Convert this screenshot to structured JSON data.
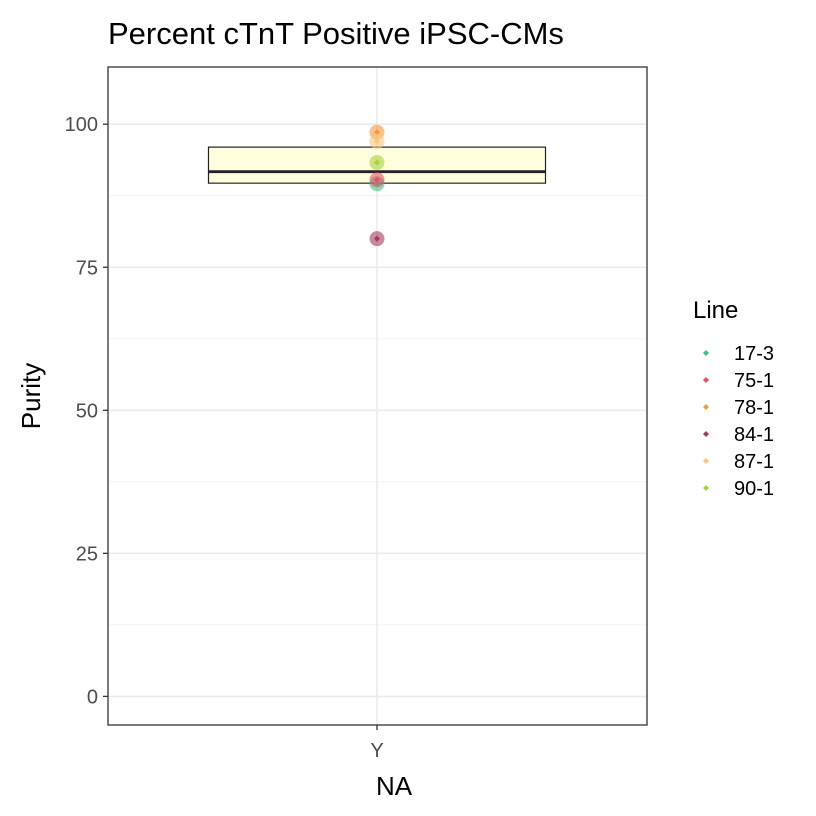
{
  "chart_data": {
    "type": "box",
    "title": "Percent cTnT Positive iPSC-CMs",
    "xlabel": "NA",
    "ylabel": "Purity",
    "categories": [
      "Y"
    ],
    "ylim": [
      -5,
      110
    ],
    "yticks": [
      0,
      25,
      50,
      75,
      100
    ],
    "grid": true,
    "box": {
      "category": "Y",
      "lower": 89.7,
      "median": 91.7,
      "upper": 96.0,
      "fill": "#ffffdd",
      "stroke": "#222222"
    },
    "legend": {
      "title": "Line",
      "placement": "right"
    },
    "series": [
      {
        "name": "17-3",
        "color": "#3fc281",
        "points": [
          {
            "x": "Y",
            "y": 89.6
          }
        ]
      },
      {
        "name": "75-1",
        "color": "#e8506a",
        "points": [
          {
            "x": "Y",
            "y": 90.3
          }
        ]
      },
      {
        "name": "78-1",
        "color": "#f59a3a",
        "points": [
          {
            "x": "Y",
            "y": 98.6
          }
        ]
      },
      {
        "name": "84-1",
        "color": "#a33a5e",
        "points": [
          {
            "x": "Y",
            "y": 80.0
          }
        ]
      },
      {
        "name": "87-1",
        "color": "#f7c97c",
        "points": [
          {
            "x": "Y",
            "y": 97.0
          }
        ]
      },
      {
        "name": "90-1",
        "color": "#a6d13f",
        "points": [
          {
            "x": "Y",
            "y": 93.3
          }
        ]
      }
    ]
  }
}
